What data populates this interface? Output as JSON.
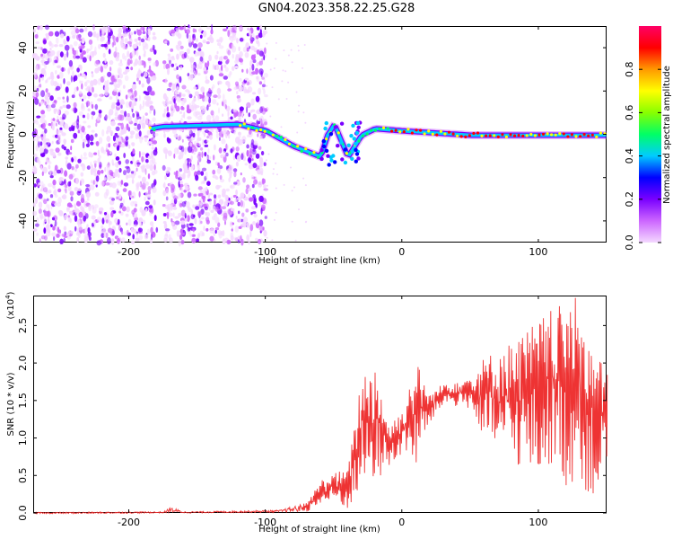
{
  "title": "GN04.2023.358.22.25.G28",
  "chart_data": [
    {
      "type": "heatmap",
      "name": "spectrogram",
      "xlabel": "Height of straight line (km)",
      "ylabel": "Frequency (Hz)",
      "xlim": [
        -270,
        150
      ],
      "ylim": [
        -50,
        50
      ],
      "xticks": [
        -200,
        -100,
        0,
        100
      ],
      "yticks": [
        -40,
        -20,
        0,
        20,
        40
      ],
      "colorbar": {
        "label": "Normalized spectral amplitude",
        "range": [
          0.0,
          1.0
        ],
        "ticks": [
          "0.0",
          "0.2",
          "0.4",
          "0.6",
          "0.8"
        ],
        "colormap": [
          "#f4d8ff",
          "#cc66ff",
          "#7a00ff",
          "#0000ff",
          "#00ccff",
          "#00ff66",
          "#88ff00",
          "#ffff00",
          "#ff9900",
          "#ff0000",
          "#ff0066"
        ]
      },
      "noise_regions": [
        [
          -270,
          -180
        ],
        [
          -175,
          -120
        ],
        [
          -120,
          -100
        ]
      ],
      "signal_track": [
        {
          "x": -185,
          "y": 3
        },
        {
          "x": -175,
          "y": 4
        },
        {
          "x": -120,
          "y": 5
        },
        {
          "x": -100,
          "y": 2
        },
        {
          "x": -80,
          "y": -5
        },
        {
          "x": -60,
          "y": -10
        },
        {
          "x": -55,
          "y": 0
        },
        {
          "x": -50,
          "y": 5
        },
        {
          "x": -40,
          "y": -10
        },
        {
          "x": -30,
          "y": 0
        },
        {
          "x": -20,
          "y": 3
        },
        {
          "x": 0,
          "y": 2
        },
        {
          "x": 50,
          "y": 0
        },
        {
          "x": 100,
          "y": 0
        },
        {
          "x": 150,
          "y": 0
        }
      ]
    },
    {
      "type": "line",
      "name": "snr",
      "xlabel": "Height of straight line (km)",
      "ylabel": "SNR (10 * v/v)",
      "y_scale_label": "(x10",
      "y_scale_exp": "4",
      "y_scale_close": ")",
      "xlim": [
        -270,
        150
      ],
      "ylim": [
        0,
        2.9
      ],
      "xticks": [
        -200,
        -100,
        0,
        100
      ],
      "yticks": [
        "0.0",
        "0.5",
        "1.0",
        "1.5",
        "2.0",
        "2.5"
      ],
      "color": "#ee3333",
      "envelope": [
        {
          "x": -270,
          "low": 0.0,
          "high": 0.02
        },
        {
          "x": -175,
          "low": 0.01,
          "high": 0.03
        },
        {
          "x": -170,
          "low": 0.02,
          "high": 0.09
        },
        {
          "x": -160,
          "low": 0.01,
          "high": 0.03
        },
        {
          "x": -90,
          "low": 0.02,
          "high": 0.05
        },
        {
          "x": -70,
          "low": 0.03,
          "high": 0.15
        },
        {
          "x": -60,
          "low": 0.1,
          "high": 0.45
        },
        {
          "x": -50,
          "low": 0.15,
          "high": 0.55
        },
        {
          "x": -40,
          "low": 0.05,
          "high": 0.6
        },
        {
          "x": -30,
          "low": 0.3,
          "high": 1.9
        },
        {
          "x": -20,
          "low": 0.4,
          "high": 2.0
        },
        {
          "x": -10,
          "low": 0.6,
          "high": 1.2
        },
        {
          "x": 0,
          "low": 0.8,
          "high": 1.4
        },
        {
          "x": 10,
          "low": 0.6,
          "high": 2.05
        },
        {
          "x": 20,
          "low": 1.2,
          "high": 1.6
        },
        {
          "x": 30,
          "low": 1.45,
          "high": 1.75
        },
        {
          "x": 50,
          "low": 1.4,
          "high": 1.85
        },
        {
          "x": 60,
          "low": 0.9,
          "high": 2.1
        },
        {
          "x": 80,
          "low": 0.7,
          "high": 2.3
        },
        {
          "x": 100,
          "low": 0.4,
          "high": 2.6
        },
        {
          "x": 110,
          "low": 0.7,
          "high": 2.75
        },
        {
          "x": 120,
          "low": 0.3,
          "high": 2.8
        },
        {
          "x": 128,
          "low": 0.5,
          "high": 2.9
        },
        {
          "x": 140,
          "low": 0.1,
          "high": 2.2
        },
        {
          "x": 150,
          "low": 0.6,
          "high": 1.9
        }
      ]
    }
  ]
}
